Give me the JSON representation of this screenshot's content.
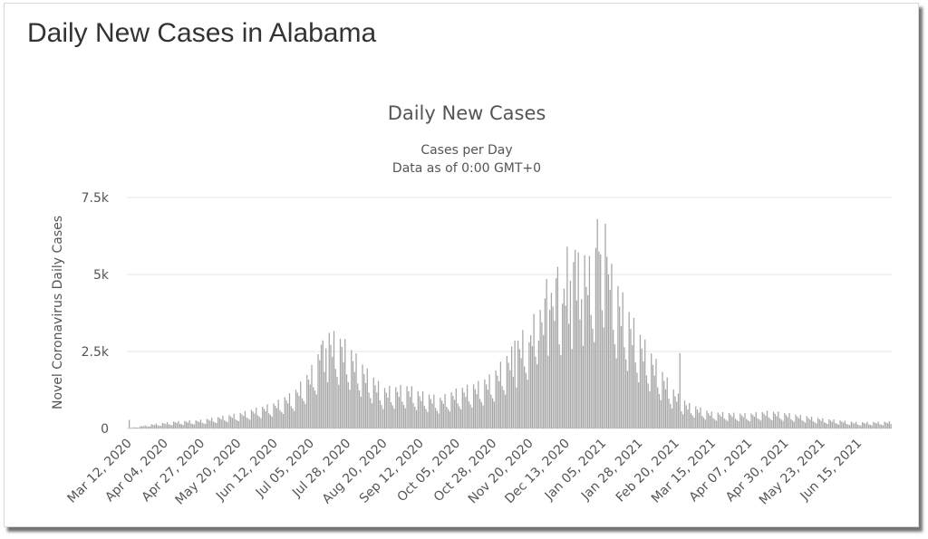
{
  "page": {
    "title": "Daily New Cases in Alabama"
  },
  "chart_data": {
    "type": "bar",
    "title": "Daily New Cases",
    "subtitle_line1": "Cases per Day",
    "subtitle_line2": "Data as of 0:00 GMT+0",
    "ylabel": "Novel Coronavirus Daily Cases",
    "xlabel": "",
    "ylim": [
      0,
      7500
    ],
    "yticks": [
      {
        "value": 0,
        "label": "0"
      },
      {
        "value": 2500,
        "label": "2.5k"
      },
      {
        "value": 5000,
        "label": "5k"
      },
      {
        "value": 7500,
        "label": "7.5k"
      }
    ],
    "grid": true,
    "legend": "none",
    "bar_color": "#a6a6a6",
    "grid_color": "#e6e6e6",
    "x_start": "2020-03-12",
    "x_end": "2021-07-06",
    "x_tick_labels": [
      "Mar 12, 2020",
      "Apr 04, 2020",
      "Apr 27, 2020",
      "May 20, 2020",
      "Jun 12, 2020",
      "Jul 05, 2020",
      "Jul 28, 2020",
      "Aug 20, 2020",
      "Sep 12, 2020",
      "Oct 05, 2020",
      "Oct 28, 2020",
      "Nov 20, 2020",
      "Dec 13, 2020",
      "Jan 05, 2021",
      "Jan 28, 2021",
      "Feb 20, 2021",
      "Mar 15, 2021",
      "Apr 07, 2021",
      "Apr 30, 2021",
      "May 23, 2021",
      "Jun 15, 2021"
    ],
    "key_points": [
      {
        "date": "2020-03-12",
        "value": 5
      },
      {
        "date": "2020-03-26",
        "value": 100
      },
      {
        "date": "2020-04-10",
        "value": 180
      },
      {
        "date": "2020-04-27",
        "value": 220
      },
      {
        "date": "2020-05-20",
        "value": 380
      },
      {
        "date": "2020-06-12",
        "value": 650
      },
      {
        "date": "2020-06-25",
        "value": 950
      },
      {
        "date": "2020-07-05",
        "value": 1500
      },
      {
        "date": "2020-07-12",
        "value": 2100
      },
      {
        "date": "2020-07-16",
        "value": 2500
      },
      {
        "date": "2020-07-22",
        "value": 2400
      },
      {
        "date": "2020-07-28",
        "value": 2200
      },
      {
        "date": "2020-08-10",
        "value": 1500
      },
      {
        "date": "2020-08-20",
        "value": 1050
      },
      {
        "date": "2020-09-05",
        "value": 1100
      },
      {
        "date": "2020-09-12",
        "value": 950
      },
      {
        "date": "2020-09-25",
        "value": 800
      },
      {
        "date": "2020-10-05",
        "value": 1000
      },
      {
        "date": "2020-10-20",
        "value": 1200
      },
      {
        "date": "2020-10-28",
        "value": 1400
      },
      {
        "date": "2020-11-10",
        "value": 2100
      },
      {
        "date": "2020-11-20",
        "value": 2700
      },
      {
        "date": "2020-12-01",
        "value": 3300
      },
      {
        "date": "2020-12-13",
        "value": 4200
      },
      {
        "date": "2020-12-25",
        "value": 4500
      },
      {
        "date": "2021-01-05",
        "value": 4800
      },
      {
        "date": "2021-01-12",
        "value": 4000
      },
      {
        "date": "2021-01-20",
        "value": 3200
      },
      {
        "date": "2021-01-28",
        "value": 2500
      },
      {
        "date": "2021-02-10",
        "value": 1600
      },
      {
        "date": "2021-02-20",
        "value": 950
      },
      {
        "date": "2021-02-28",
        "value": 650
      },
      {
        "date": "2021-03-15",
        "value": 420
      },
      {
        "date": "2021-04-07",
        "value": 380
      },
      {
        "date": "2021-04-20",
        "value": 450
      },
      {
        "date": "2021-04-30",
        "value": 400
      },
      {
        "date": "2021-05-23",
        "value": 260
      },
      {
        "date": "2021-06-15",
        "value": 160
      },
      {
        "date": "2021-07-06",
        "value": 180
      }
    ],
    "spikes": [
      {
        "date": "2020-03-13",
        "value": 280
      },
      {
        "date": "2020-07-12",
        "value": 2720
      },
      {
        "date": "2020-07-15",
        "value": 2600
      },
      {
        "date": "2020-07-25",
        "value": 2650
      },
      {
        "date": "2020-11-11",
        "value": 2850
      },
      {
        "date": "2020-11-20",
        "value": 2800
      },
      {
        "date": "2020-11-26",
        "value": 2850
      },
      {
        "date": "2020-12-01",
        "value": 4850
      },
      {
        "date": "2020-12-03",
        "value": 3850
      },
      {
        "date": "2020-12-08",
        "value": 5250
      },
      {
        "date": "2020-12-11",
        "value": 4050
      },
      {
        "date": "2020-12-14",
        "value": 5900
      },
      {
        "date": "2020-12-16",
        "value": 4800
      },
      {
        "date": "2020-12-19",
        "value": 5800
      },
      {
        "date": "2020-12-23",
        "value": 4200
      },
      {
        "date": "2020-12-26",
        "value": 4600
      },
      {
        "date": "2020-12-28",
        "value": 5600
      },
      {
        "date": "2021-01-02",
        "value": 6800
      },
      {
        "date": "2021-01-03",
        "value": 5750
      },
      {
        "date": "2021-01-04",
        "value": 5650
      },
      {
        "date": "2021-01-07",
        "value": 6650
      },
      {
        "date": "2021-01-09",
        "value": 5000
      },
      {
        "date": "2021-01-10",
        "value": 4500
      },
      {
        "date": "2021-02-23",
        "value": 2450
      }
    ]
  }
}
